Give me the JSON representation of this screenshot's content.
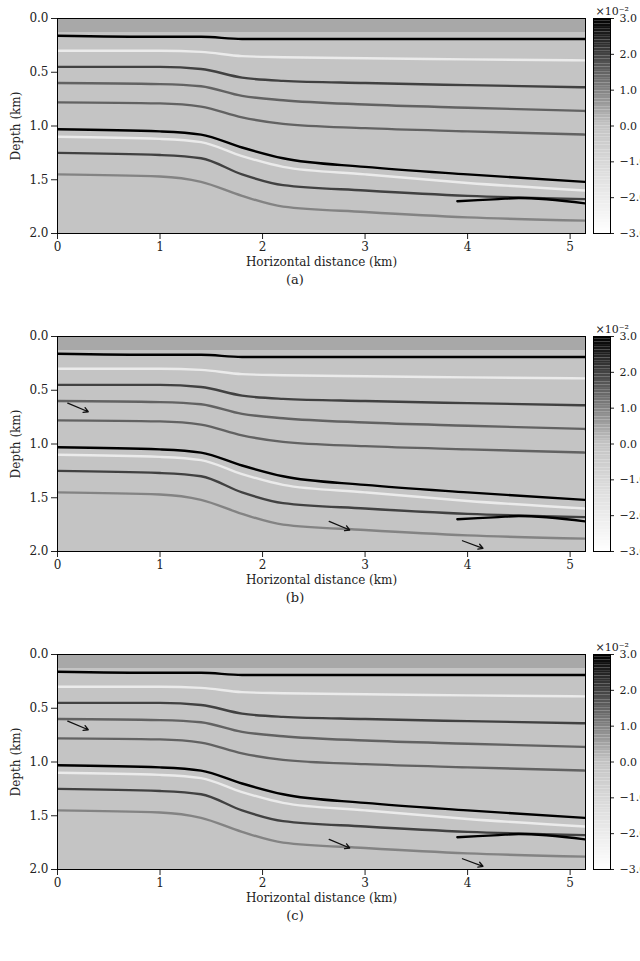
{
  "chart_data": [
    {
      "type": "seismic_section",
      "caption": "(a)",
      "x_label": "Horizontal distance (km)",
      "y_label": "Depth (km)",
      "xlim": [
        0,
        5.15
      ],
      "ylim": [
        2,
        0
      ],
      "xticks": [
        0,
        1,
        2,
        3,
        4,
        5
      ],
      "yticks": [
        {
          "value": 0,
          "label": "0.0"
        },
        {
          "value": 0.5,
          "label": "0.5"
        },
        {
          "value": 1,
          "label": "1.0"
        },
        {
          "value": 1.5,
          "label": "1.5"
        },
        {
          "value": 2,
          "label": "2.0"
        }
      ],
      "colorbar": {
        "range": [
          -3,
          3
        ],
        "ticks": [
          -3,
          -2,
          -1,
          0,
          1,
          2,
          3
        ],
        "label": "×10⁻²"
      },
      "water_bottom": 0.13,
      "horizons": [
        {
          "amplitude": 3,
          "x": [
            0,
            1,
            1.4,
            1.8,
            2.2,
            3,
            4,
            5.15
          ],
          "depth": [
            0.16,
            0.17,
            0.17,
            0.19,
            0.19,
            0.19,
            0.19,
            0.19
          ]
        },
        {
          "amplitude": -2,
          "x": [
            0,
            1,
            1.4,
            1.8,
            2.2,
            3,
            4,
            5.15
          ],
          "depth": [
            0.3,
            0.3,
            0.31,
            0.35,
            0.36,
            0.37,
            0.38,
            0.39
          ]
        },
        {
          "amplitude": 2,
          "x": [
            0,
            1,
            1.4,
            1.8,
            2.2,
            3,
            4,
            5.15
          ],
          "depth": [
            0.45,
            0.45,
            0.47,
            0.55,
            0.58,
            0.6,
            0.62,
            0.64
          ]
        },
        {
          "amplitude": 1.5,
          "x": [
            0,
            1,
            1.4,
            1.8,
            2.2,
            3,
            4,
            5.15
          ],
          "depth": [
            0.6,
            0.61,
            0.63,
            0.72,
            0.76,
            0.8,
            0.83,
            0.86
          ]
        },
        {
          "amplitude": 1.5,
          "x": [
            0,
            1,
            1.4,
            1.8,
            2.2,
            3,
            4,
            5.15
          ],
          "depth": [
            0.78,
            0.79,
            0.82,
            0.92,
            0.98,
            1.02,
            1.05,
            1.08
          ]
        },
        {
          "amplitude": 3,
          "x": [
            0,
            1,
            1.4,
            1.8,
            2.2,
            3,
            4,
            5.15
          ],
          "depth": [
            1.03,
            1.05,
            1.08,
            1.2,
            1.3,
            1.38,
            1.45,
            1.52
          ]
        },
        {
          "amplitude": -2,
          "x": [
            0,
            1,
            1.4,
            1.8,
            2.2,
            3,
            4,
            5.15
          ],
          "depth": [
            1.1,
            1.12,
            1.15,
            1.28,
            1.38,
            1.45,
            1.53,
            1.6
          ]
        },
        {
          "amplitude": 2,
          "x": [
            0,
            1,
            1.4,
            1.8,
            2.2,
            3,
            4,
            5.15
          ],
          "depth": [
            1.25,
            1.27,
            1.3,
            1.45,
            1.55,
            1.6,
            1.65,
            1.68
          ]
        },
        {
          "amplitude": 1,
          "x": [
            0,
            1,
            1.4,
            1.8,
            2.2,
            3,
            4,
            5.15
          ],
          "depth": [
            1.45,
            1.47,
            1.52,
            1.65,
            1.75,
            1.8,
            1.85,
            1.88
          ]
        },
        {
          "amplitude": 3,
          "x": [
            3.9,
            4.3,
            4.5,
            5.15
          ],
          "depth": [
            1.7,
            1.68,
            1.67,
            1.72
          ]
        }
      ]
    },
    {
      "type": "seismic_section",
      "caption": "(b)",
      "x_label": "Horizontal distance (km)",
      "y_label": "Depth (km)",
      "xlim": [
        0,
        5.15
      ],
      "ylim": [
        2,
        0
      ],
      "xticks": [
        0,
        1,
        2,
        3,
        4,
        5
      ],
      "yticks": [
        {
          "value": 0,
          "label": "0.0"
        },
        {
          "value": 0.5,
          "label": "0.5"
        },
        {
          "value": 1,
          "label": "1.0"
        },
        {
          "value": 1.5,
          "label": "1.5"
        },
        {
          "value": 2,
          "label": "2.0"
        }
      ],
      "colorbar": {
        "range": [
          -3,
          3
        ],
        "ticks": [
          -3,
          -2,
          -1,
          0,
          1,
          2,
          3
        ],
        "label": "×10⁻²"
      },
      "water_bottom": 0.13,
      "horizons": [
        {
          "amplitude": 3,
          "x": [
            0,
            1,
            1.4,
            1.8,
            2.2,
            3,
            4,
            5.15
          ],
          "depth": [
            0.16,
            0.17,
            0.17,
            0.19,
            0.19,
            0.19,
            0.19,
            0.19
          ]
        },
        {
          "amplitude": -2,
          "x": [
            0,
            1,
            1.4,
            1.8,
            2.2,
            3,
            4,
            5.15
          ],
          "depth": [
            0.3,
            0.3,
            0.31,
            0.35,
            0.36,
            0.37,
            0.38,
            0.39
          ]
        },
        {
          "amplitude": 2,
          "x": [
            0,
            1,
            1.4,
            1.8,
            2.2,
            3,
            4,
            5.15
          ],
          "depth": [
            0.45,
            0.45,
            0.47,
            0.55,
            0.58,
            0.6,
            0.62,
            0.64
          ]
        },
        {
          "amplitude": 1.5,
          "x": [
            0,
            1,
            1.4,
            1.8,
            2.2,
            3,
            4,
            5.15
          ],
          "depth": [
            0.6,
            0.61,
            0.63,
            0.72,
            0.76,
            0.8,
            0.83,
            0.86
          ]
        },
        {
          "amplitude": 1.5,
          "x": [
            0,
            1,
            1.4,
            1.8,
            2.2,
            3,
            4,
            5.15
          ],
          "depth": [
            0.78,
            0.79,
            0.82,
            0.92,
            0.98,
            1.02,
            1.05,
            1.08
          ]
        },
        {
          "amplitude": 3,
          "x": [
            0,
            1,
            1.4,
            1.8,
            2.2,
            3,
            4,
            5.15
          ],
          "depth": [
            1.03,
            1.05,
            1.08,
            1.2,
            1.3,
            1.38,
            1.45,
            1.52
          ]
        },
        {
          "amplitude": -2,
          "x": [
            0,
            1,
            1.4,
            1.8,
            2.2,
            3,
            4,
            5.15
          ],
          "depth": [
            1.1,
            1.12,
            1.15,
            1.28,
            1.38,
            1.45,
            1.53,
            1.6
          ]
        },
        {
          "amplitude": 2,
          "x": [
            0,
            1,
            1.4,
            1.8,
            2.2,
            3,
            4,
            5.15
          ],
          "depth": [
            1.25,
            1.27,
            1.3,
            1.45,
            1.55,
            1.6,
            1.65,
            1.68
          ]
        },
        {
          "amplitude": 1,
          "x": [
            0,
            1,
            1.4,
            1.8,
            2.2,
            3,
            4,
            5.15
          ],
          "depth": [
            1.45,
            1.47,
            1.52,
            1.65,
            1.75,
            1.8,
            1.85,
            1.88
          ]
        },
        {
          "amplitude": 3,
          "x": [
            3.9,
            4.3,
            4.5,
            5.15
          ],
          "depth": [
            1.7,
            1.68,
            1.67,
            1.72
          ]
        }
      ],
      "arrows": [
        {
          "x1": 0.1,
          "y1": 0.62,
          "x2": 0.3,
          "y2": 0.7
        },
        {
          "x1": 2.65,
          "y1": 1.72,
          "x2": 2.85,
          "y2": 1.8
        },
        {
          "x1": 3.95,
          "y1": 1.9,
          "x2": 4.15,
          "y2": 1.97
        }
      ]
    },
    {
      "type": "seismic_section",
      "caption": "(c)",
      "x_label": "Horizontal distance (km)",
      "y_label": "Depth (km)",
      "xlim": [
        0,
        5.15
      ],
      "ylim": [
        2,
        0
      ],
      "xticks": [
        0,
        1,
        2,
        3,
        4,
        5
      ],
      "yticks": [
        {
          "value": 0,
          "label": "0.0"
        },
        {
          "value": 0.5,
          "label": "0.5"
        },
        {
          "value": 1,
          "label": "1.0"
        },
        {
          "value": 1.5,
          "label": "1.5"
        },
        {
          "value": 2,
          "label": "2.0"
        }
      ],
      "colorbar": {
        "range": [
          -3,
          3
        ],
        "ticks": [
          -3,
          -2,
          -1,
          0,
          1,
          2,
          3
        ],
        "label": "×10⁻²"
      },
      "water_bottom": 0.13,
      "horizons": [
        {
          "amplitude": 3,
          "x": [
            0,
            1,
            1.4,
            1.8,
            2.2,
            3,
            4,
            5.15
          ],
          "depth": [
            0.16,
            0.17,
            0.17,
            0.19,
            0.19,
            0.19,
            0.19,
            0.19
          ]
        },
        {
          "amplitude": -2,
          "x": [
            0,
            1,
            1.4,
            1.8,
            2.2,
            3,
            4,
            5.15
          ],
          "depth": [
            0.3,
            0.3,
            0.31,
            0.35,
            0.36,
            0.37,
            0.38,
            0.39
          ]
        },
        {
          "amplitude": 2,
          "x": [
            0,
            1,
            1.4,
            1.8,
            2.2,
            3,
            4,
            5.15
          ],
          "depth": [
            0.45,
            0.45,
            0.47,
            0.55,
            0.58,
            0.6,
            0.62,
            0.64
          ]
        },
        {
          "amplitude": 1.5,
          "x": [
            0,
            1,
            1.4,
            1.8,
            2.2,
            3,
            4,
            5.15
          ],
          "depth": [
            0.6,
            0.61,
            0.63,
            0.72,
            0.76,
            0.8,
            0.83,
            0.86
          ]
        },
        {
          "amplitude": 1.5,
          "x": [
            0,
            1,
            1.4,
            1.8,
            2.2,
            3,
            4,
            5.15
          ],
          "depth": [
            0.78,
            0.79,
            0.82,
            0.92,
            0.98,
            1.02,
            1.05,
            1.08
          ]
        },
        {
          "amplitude": 3,
          "x": [
            0,
            1,
            1.4,
            1.8,
            2.2,
            3,
            4,
            5.15
          ],
          "depth": [
            1.03,
            1.05,
            1.08,
            1.2,
            1.3,
            1.38,
            1.45,
            1.52
          ]
        },
        {
          "amplitude": -2,
          "x": [
            0,
            1,
            1.4,
            1.8,
            2.2,
            3,
            4,
            5.15
          ],
          "depth": [
            1.1,
            1.12,
            1.15,
            1.28,
            1.38,
            1.45,
            1.53,
            1.6
          ]
        },
        {
          "amplitude": 2,
          "x": [
            0,
            1,
            1.4,
            1.8,
            2.2,
            3,
            4,
            5.15
          ],
          "depth": [
            1.25,
            1.27,
            1.3,
            1.45,
            1.55,
            1.6,
            1.65,
            1.68
          ]
        },
        {
          "amplitude": 1,
          "x": [
            0,
            1,
            1.4,
            1.8,
            2.2,
            3,
            4,
            5.15
          ],
          "depth": [
            1.45,
            1.47,
            1.52,
            1.65,
            1.75,
            1.8,
            1.85,
            1.88
          ]
        },
        {
          "amplitude": 3,
          "x": [
            3.9,
            4.3,
            4.5,
            5.15
          ],
          "depth": [
            1.7,
            1.68,
            1.67,
            1.72
          ]
        }
      ],
      "arrows": [
        {
          "x1": 0.1,
          "y1": 0.62,
          "x2": 0.3,
          "y2": 0.7
        },
        {
          "x1": 2.65,
          "y1": 1.72,
          "x2": 2.85,
          "y2": 1.8
        },
        {
          "x1": 3.95,
          "y1": 1.9,
          "x2": 4.15,
          "y2": 1.97
        }
      ]
    }
  ]
}
